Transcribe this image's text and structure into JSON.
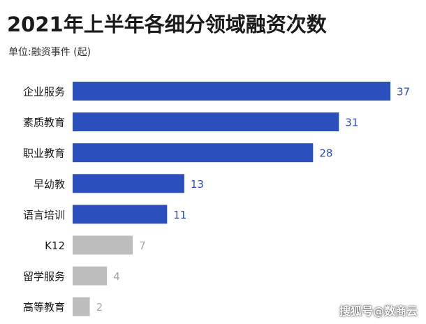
{
  "title": "2021年上半年各细分领域融资次数",
  "unit_label": "单位:融资事件 (起)",
  "watermark": "搜狐号@数商云",
  "colors": {
    "highlight": "#2b4fbd",
    "muted": "#bdbdbd",
    "label_muted": "#a6a6a6",
    "category_text": "#1a1a1a"
  },
  "chart_data": {
    "type": "bar",
    "orientation": "horizontal",
    "title": "2021年上半年各细分领域融资次数",
    "subtitle": "单位:融资事件 (起)",
    "categories": [
      "企业服务",
      "素质教育",
      "职业教育",
      "早幼教",
      "语言培训",
      "K12",
      "留学服务",
      "高等教育"
    ],
    "values": [
      37,
      31,
      28,
      13,
      11,
      7,
      4,
      2
    ],
    "highlighted": [
      true,
      true,
      true,
      true,
      true,
      false,
      false,
      false
    ],
    "xlim": [
      0,
      37
    ],
    "grid": false,
    "legend": "none"
  }
}
